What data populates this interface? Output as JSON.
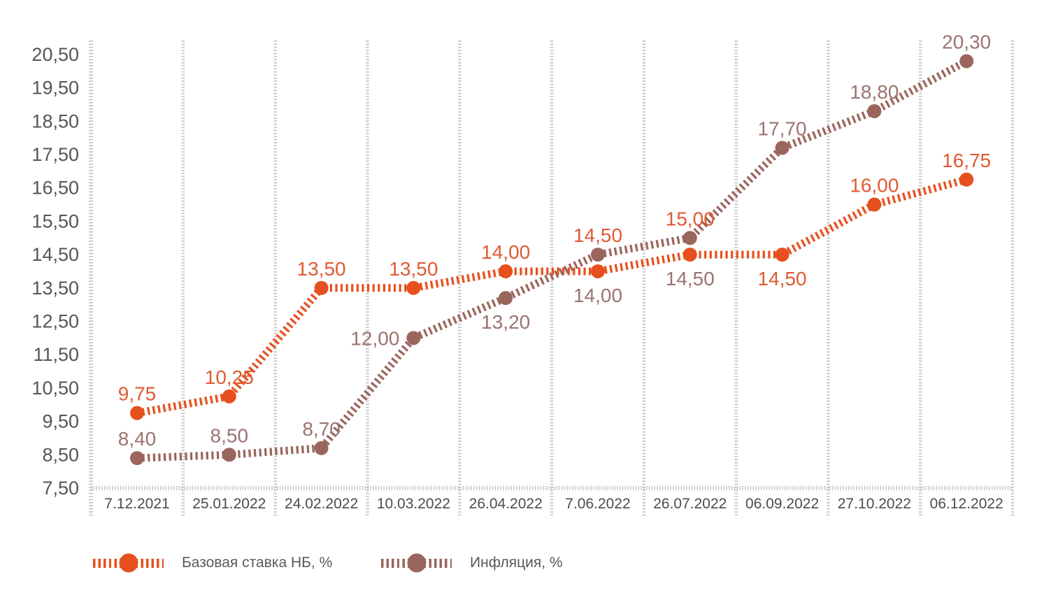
{
  "page": {
    "background": "#FFFFFF"
  },
  "chart_data": {
    "type": "line",
    "title": "",
    "xlabel": "",
    "ylabel": "",
    "categories": [
      "7.12.2021",
      "25.01.2022",
      "24.02.2022",
      "10.03.2022",
      "26.04.2022",
      "7.06.2022",
      "26.07.2022",
      "06.09.2022",
      "27.10.2022",
      "06.12.2022"
    ],
    "ylim": [
      7.5,
      20.5
    ],
    "y_tick_step": 1.0,
    "y_ticks": [
      "20,50",
      "19,50",
      "18,50",
      "17,50",
      "16,50",
      "15,50",
      "14,50",
      "13,50",
      "12,50",
      "11,50",
      "10,50",
      "9,50",
      "8,50",
      "7,50"
    ],
    "grid": "vertical-only",
    "legend_position": "bottom",
    "line_style": "thick-perpendicular-dashes",
    "marker": "circle",
    "axis_color": "#C5C6C8",
    "y_tick_label_color": "#54565B",
    "x_tick_label_color": "#4B4C4E",
    "series": [
      {
        "name": "Базовая ставка НБ, %",
        "color": "#E6501E",
        "values": [
          9.75,
          10.25,
          13.5,
          13.5,
          14.0,
          14.0,
          14.5,
          14.5,
          16.0,
          16.75
        ],
        "point_labels": [
          {
            "text": "9,75",
            "pos": "above",
            "color": "#E05A31"
          },
          {
            "text": "10,25",
            "pos": "above",
            "color": "#E05A31"
          },
          {
            "text": "13,50",
            "pos": "above",
            "color": "#E05A31"
          },
          {
            "text": "13,50",
            "pos": "above",
            "color": "#E05A31"
          },
          {
            "text": "14,00",
            "pos": "above",
            "color": "#E05A31"
          },
          {
            "text": "14,00",
            "pos": "below",
            "color": "#9B7370"
          },
          {
            "text": "14,50",
            "pos": "below",
            "color": "#9B7370"
          },
          {
            "text": "14,50",
            "pos": "below",
            "color": "#E05A31"
          },
          {
            "text": "16,00",
            "pos": "above",
            "color": "#E05A31"
          },
          {
            "text": "16,75",
            "pos": "above",
            "color": "#E05A31"
          }
        ]
      },
      {
        "name": "Инфляция, %",
        "color": "#9A655C",
        "values": [
          8.4,
          8.5,
          8.7,
          12.0,
          13.2,
          14.5,
          15.0,
          17.7,
          18.8,
          20.3
        ],
        "point_labels": [
          {
            "text": "8,40",
            "pos": "above",
            "color": "#9B7370"
          },
          {
            "text": "8,50",
            "pos": "above",
            "color": "#9B7370"
          },
          {
            "text": "8,70",
            "pos": "above",
            "color": "#9B7370"
          },
          {
            "text": "12,00",
            "pos": "left",
            "color": "#9B7370"
          },
          {
            "text": "13,20",
            "pos": "below",
            "color": "#9B7370"
          },
          {
            "text": "14,50",
            "pos": "above",
            "color": "#E05A31"
          },
          {
            "text": "15,00",
            "pos": "above",
            "color": "#E05A31"
          },
          {
            "text": "17,70",
            "pos": "above",
            "color": "#9B7370"
          },
          {
            "text": "18,80",
            "pos": "above",
            "color": "#9B7370"
          },
          {
            "text": "20,30",
            "pos": "above",
            "color": "#9B7370"
          }
        ]
      }
    ]
  }
}
